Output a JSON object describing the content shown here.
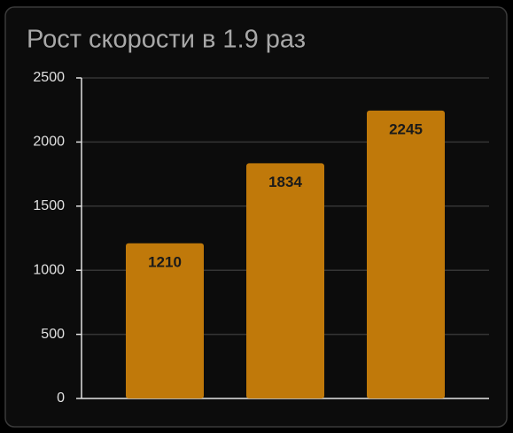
{
  "chart_data": {
    "type": "bar",
    "title": "Рост скорости в 1.9 раз",
    "categories": [
      null,
      null,
      null
    ],
    "values": [
      1210,
      1834,
      2245
    ],
    "color": "#c0790a",
    "ylim": [
      0,
      2500
    ],
    "yticks": [
      0,
      500,
      1000,
      1500,
      2000,
      2500
    ],
    "grid": true
  }
}
